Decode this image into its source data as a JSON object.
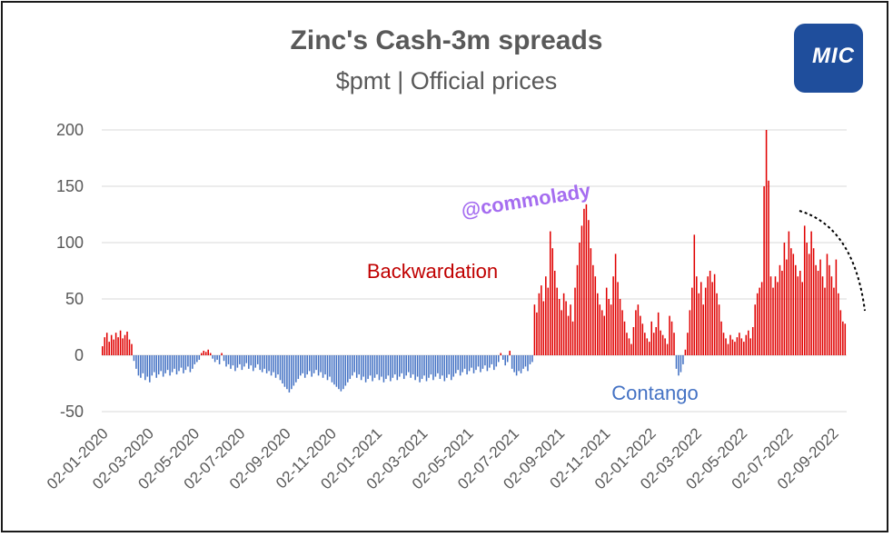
{
  "chart_data": {
    "type": "bar",
    "title": "Zinc's Cash-3m spreads",
    "subtitle": "$pmt | Official prices",
    "ylim": [
      -50,
      200
    ],
    "yticks": [
      200,
      150,
      100,
      50,
      0,
      -50
    ],
    "grid": true,
    "x_tick_labels": [
      "02-01-2020",
      "02-03-2020",
      "02-05-2020",
      "02-07-2020",
      "02-09-2020",
      "02-11-2020",
      "02-01-2021",
      "02-03-2021",
      "02-05-2021",
      "02-07-2021",
      "02-09-2021",
      "02-11-2021",
      "02-01-2022",
      "02-03-2022",
      "02-05-2022",
      "02-07-2022",
      "02-09-2022"
    ],
    "annotations": {
      "backwardation": "Backwardation",
      "contango": "Contango",
      "watermark": "@commolady"
    },
    "colors": {
      "positive": "#e00000",
      "negative": "#4472c4"
    },
    "values": [
      8,
      16,
      20,
      12,
      18,
      14,
      20,
      16,
      22,
      15,
      18,
      21,
      14,
      10,
      -5,
      -12,
      -18,
      -20,
      -16,
      -22,
      -19,
      -24,
      -18,
      -15,
      -20,
      -17,
      -14,
      -19,
      -16,
      -13,
      -18,
      -15,
      -12,
      -17,
      -14,
      -11,
      -16,
      -13,
      -10,
      -15,
      -12,
      -8,
      -6,
      -4,
      2,
      4,
      3,
      5,
      2,
      -3,
      -6,
      -4,
      -8,
      2,
      -5,
      -10,
      -8,
      -12,
      -9,
      -14,
      -11,
      -8,
      -13,
      -10,
      -7,
      -12,
      -9,
      -14,
      -11,
      -8,
      -13,
      -15,
      -12,
      -16,
      -14,
      -18,
      -15,
      -20,
      -17,
      -22,
      -25,
      -28,
      -30,
      -33,
      -30,
      -27,
      -24,
      -21,
      -18,
      -16,
      -20,
      -17,
      -14,
      -19,
      -16,
      -13,
      -18,
      -15,
      -20,
      -17,
      -22,
      -19,
      -24,
      -26,
      -28,
      -30,
      -32,
      -30,
      -27,
      -24,
      -21,
      -18,
      -15,
      -20,
      -17,
      -22,
      -19,
      -24,
      -21,
      -18,
      -23,
      -20,
      -17,
      -22,
      -19,
      -24,
      -21,
      -18,
      -23,
      -20,
      -17,
      -22,
      -19,
      -16,
      -21,
      -18,
      -15,
      -20,
      -17,
      -22,
      -19,
      -24,
      -21,
      -18,
      -23,
      -20,
      -17,
      -22,
      -19,
      -16,
      -21,
      -18,
      -23,
      -20,
      -17,
      -22,
      -19,
      -16,
      -13,
      -18,
      -15,
      -12,
      -17,
      -14,
      -11,
      -16,
      -13,
      -10,
      -15,
      -12,
      -9,
      -14,
      -11,
      -8,
      -13,
      -10,
      -6,
      2,
      -4,
      -9,
      -6,
      4,
      -12,
      -15,
      -18,
      -14,
      -16,
      -12,
      -10,
      -14,
      -8,
      -6,
      45,
      38,
      55,
      62,
      48,
      70,
      60,
      110,
      95,
      75,
      60,
      50,
      40,
      55,
      48,
      35,
      45,
      30,
      60,
      80,
      100,
      115,
      130,
      134,
      120,
      95,
      80,
      70,
      55,
      45,
      40,
      35,
      60,
      50,
      45,
      70,
      90,
      65,
      50,
      40,
      30,
      20,
      15,
      10,
      25,
      40,
      45,
      35,
      28,
      20,
      15,
      12,
      30,
      20,
      25,
      38,
      22,
      18,
      15,
      10,
      35,
      30,
      20,
      -12,
      -18,
      -15,
      -8,
      5,
      20,
      40,
      60,
      107,
      70,
      55,
      65,
      45,
      60,
      70,
      75,
      65,
      72,
      55,
      45,
      30,
      20,
      15,
      10,
      18,
      14,
      12,
      16,
      20,
      15,
      12,
      18,
      22,
      15,
      25,
      45,
      55,
      60,
      65,
      150,
      200,
      155,
      70,
      60,
      70,
      65,
      80,
      75,
      100,
      85,
      110,
      95,
      90,
      80,
      70,
      75,
      65,
      115,
      100,
      90,
      110,
      95,
      80,
      75,
      85,
      70,
      60,
      90,
      80,
      70,
      60,
      85,
      55,
      40,
      30,
      28
    ],
    "trend_arrow": {
      "from": [
        880,
        232
      ],
      "to": [
        952,
        342
      ]
    }
  }
}
